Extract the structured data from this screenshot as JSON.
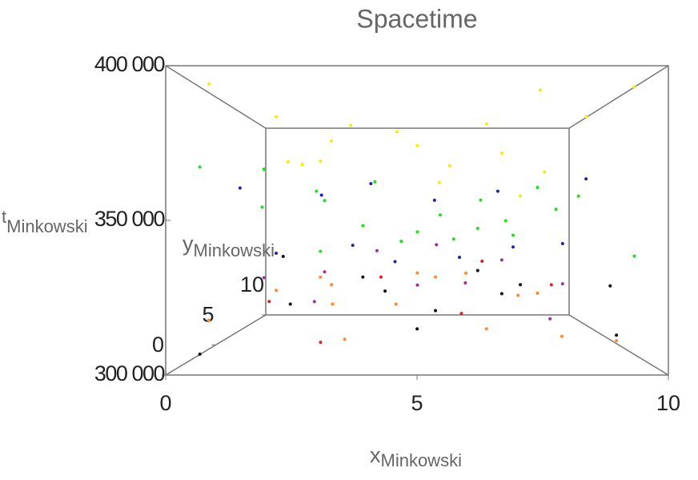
{
  "chart_data": {
    "type": "scatter3d",
    "title": "Spacetime",
    "xlabel": "x",
    "xlabel_sub": "Minkowski",
    "ylabel": "y",
    "ylabel_sub": "Minkowski",
    "zlabel": "t",
    "zlabel_sub": "Minkowski",
    "xlim": [
      0,
      10
    ],
    "xticks": [
      0,
      5,
      10
    ],
    "ylim": [
      0,
      10
    ],
    "yticks": [
      0,
      5,
      10
    ],
    "zlim": [
      300000,
      400000
    ],
    "zticks": [
      {
        "value": 300000,
        "label": "300 000"
      },
      {
        "value": 350000,
        "label": "350 000"
      },
      {
        "value": 400000,
        "label": "400 000"
      }
    ],
    "series": [
      {
        "color": "#f0f000",
        "x": [
          0.5,
          1.5,
          2.5,
          3.5,
          5,
          6,
          7,
          8.5,
          9.5,
          1,
          3,
          4.5,
          6.5,
          8,
          9,
          2,
          5.5,
          7.5
        ],
        "y": [
          2,
          5,
          8,
          3,
          6,
          9,
          4,
          7,
          1,
          9,
          1,
          5,
          2,
          8,
          4,
          6,
          3,
          0.5
        ],
        "t": [
          398000,
          392000,
          388000,
          385000,
          382000,
          378000,
          376000,
          372000,
          395000,
          380000,
          370000,
          386000,
          384000,
          362000,
          390000,
          374000,
          364000,
          393000
        ]
      },
      {
        "color": "#22dd22",
        "x": [
          0.5,
          1.5,
          2.5,
          3.5,
          4.5,
          5.5,
          6.5,
          7.5,
          8.5,
          9.5,
          1,
          3,
          5,
          7,
          9,
          2,
          4,
          6,
          8,
          6.5
        ],
        "y": [
          1,
          3,
          5,
          7,
          9,
          2,
          4,
          6,
          8,
          1,
          6,
          2,
          8,
          3,
          5,
          9,
          4,
          7,
          2,
          5
        ],
        "t": [
          368000,
          355000,
          362000,
          348000,
          340000,
          352000,
          358000,
          344000,
          366000,
          338000,
          372000,
          357000,
          345000,
          350000,
          360000,
          335000,
          365000,
          342000,
          354000,
          347000
        ]
      },
      {
        "color": "#2222aa",
        "x": [
          1,
          2.5,
          4,
          5.5,
          7,
          8.5,
          3,
          6,
          9,
          1.5,
          4.5,
          7.5
        ],
        "y": [
          3,
          6,
          2,
          8,
          5,
          1,
          9,
          4,
          7,
          5,
          3,
          6
        ],
        "t": [
          362000,
          361000,
          363000,
          360000,
          362000,
          364000,
          338000,
          336000,
          340000,
          337000,
          335000,
          339000
        ]
      },
      {
        "color": "#111111",
        "x": [
          0.5,
          2,
          3.5,
          5,
          6.5,
          8,
          9.5,
          1.5,
          4,
          7,
          9,
          5.5
        ],
        "y": [
          1,
          4,
          7,
          2,
          5,
          8,
          3,
          6,
          9,
          4,
          1,
          7
        ],
        "t": [
          305000,
          318000,
          325000,
          312000,
          330000,
          320000,
          308000,
          335000,
          315000,
          322000,
          328000,
          310000
        ]
      },
      {
        "color": "#ff8833",
        "x": [
          0.5,
          1.5,
          2.5,
          3.5,
          4.5,
          5.5,
          6.5,
          7.5,
          8.5,
          9.5,
          2,
          5,
          8,
          3,
          6.5
        ],
        "y": [
          2,
          5,
          8,
          1,
          4,
          7,
          2,
          5,
          8,
          3,
          9,
          6,
          1,
          4,
          9
        ],
        "t": [
          315000,
          322000,
          320000,
          310000,
          318000,
          325000,
          312000,
          320000,
          316000,
          306000,
          322000,
          328000,
          311000,
          318000,
          324000
        ]
      },
      {
        "color": "#993399",
        "x": [
          1,
          3,
          5,
          7,
          9,
          2,
          4,
          6,
          8,
          5.5
        ],
        "y": [
          6,
          2,
          9,
          4,
          7,
          8,
          5,
          1,
          3,
          6
        ],
        "t": [
          326000,
          332000,
          318000,
          335000,
          322000,
          312000,
          338000,
          329000,
          314000,
          340000
        ]
      },
      {
        "color": "#dd2222",
        "x": [
          1.5,
          4,
          6,
          8.5,
          3,
          7
        ],
        "y": [
          4,
          7,
          3,
          6,
          1,
          9
        ],
        "t": [
          319000,
          325000,
          316000,
          323000,
          309000,
          330000
        ]
      }
    ]
  }
}
